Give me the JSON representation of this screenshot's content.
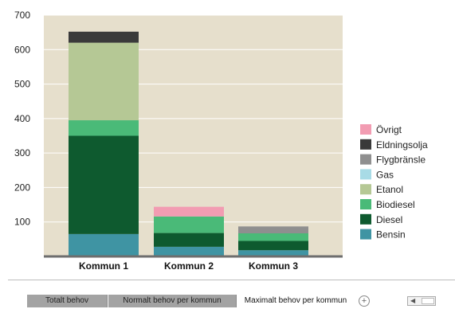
{
  "chart_data": {
    "type": "bar",
    "stacked": true,
    "categories": [
      "Kommun 1",
      "Kommun 2",
      "Kommun 3"
    ],
    "ylim": [
      0,
      700
    ],
    "yticks": [
      100,
      200,
      300,
      400,
      500,
      600,
      700
    ],
    "series": [
      {
        "name": "Bensin",
        "color": "#3f94a3",
        "values": [
          65,
          28,
          18
        ]
      },
      {
        "name": "Diesel",
        "color": "#0e5a2f",
        "values": [
          285,
          40,
          27
        ]
      },
      {
        "name": "Biodiesel",
        "color": "#4aba78",
        "values": [
          45,
          48,
          22
        ]
      },
      {
        "name": "Etanol",
        "color": "#b5c895",
        "values": [
          225,
          0,
          0
        ]
      },
      {
        "name": "Gas",
        "color": "#a8dbe6",
        "values": [
          0,
          0,
          0
        ]
      },
      {
        "name": "Flygbränsle",
        "color": "#8f8f8f",
        "values": [
          0,
          0,
          20
        ]
      },
      {
        "name": "Eldningsolja",
        "color": "#3a3a3a",
        "values": [
          32,
          0,
          0
        ]
      },
      {
        "name": "Övrigt",
        "color": "#f29cb2",
        "values": [
          0,
          28,
          0
        ]
      }
    ],
    "legend_position": "right",
    "plot_background": "#e6dfcc",
    "grid": true
  },
  "tabs": [
    {
      "label": "Totalt behov",
      "active": false
    },
    {
      "label": "Normalt behov per kommun",
      "active": false
    },
    {
      "label": "Maximalt behov per kommun",
      "active": true
    }
  ],
  "tab_add_symbol": "+"
}
